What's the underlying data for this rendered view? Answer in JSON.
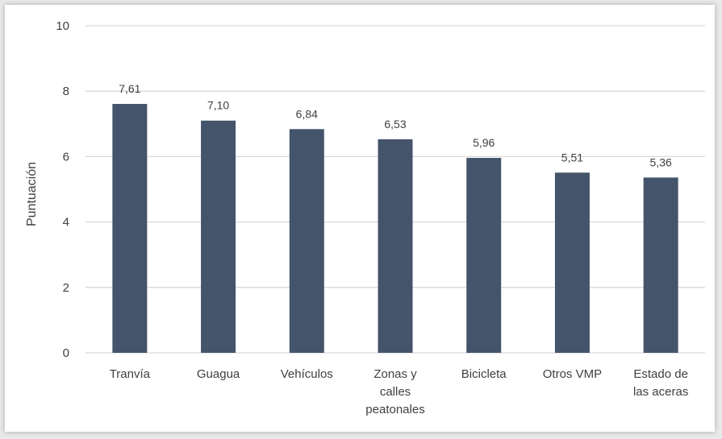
{
  "chart_data": {
    "type": "bar",
    "categories": [
      [
        "Tranvía"
      ],
      [
        "Guagua"
      ],
      [
        "Vehículos"
      ],
      [
        "Zonas y",
        "calles",
        "peatonales"
      ],
      [
        "Bicicleta"
      ],
      [
        "Otros VMP"
      ],
      [
        "Estado de",
        "las aceras"
      ]
    ],
    "values": [
      7.61,
      7.1,
      6.84,
      6.53,
      5.96,
      5.51,
      5.36
    ],
    "data_labels": [
      "7,61",
      "7,10",
      "6,84",
      "6,53",
      "5,96",
      "5,51",
      "5,36"
    ],
    "ylabel": "Puntuación",
    "ylim": [
      0,
      10
    ],
    "yticks": [
      0,
      2,
      4,
      6,
      8,
      10
    ],
    "grid": true,
    "bar_color": "#44546a",
    "grid_color": "#d9d9d9"
  }
}
